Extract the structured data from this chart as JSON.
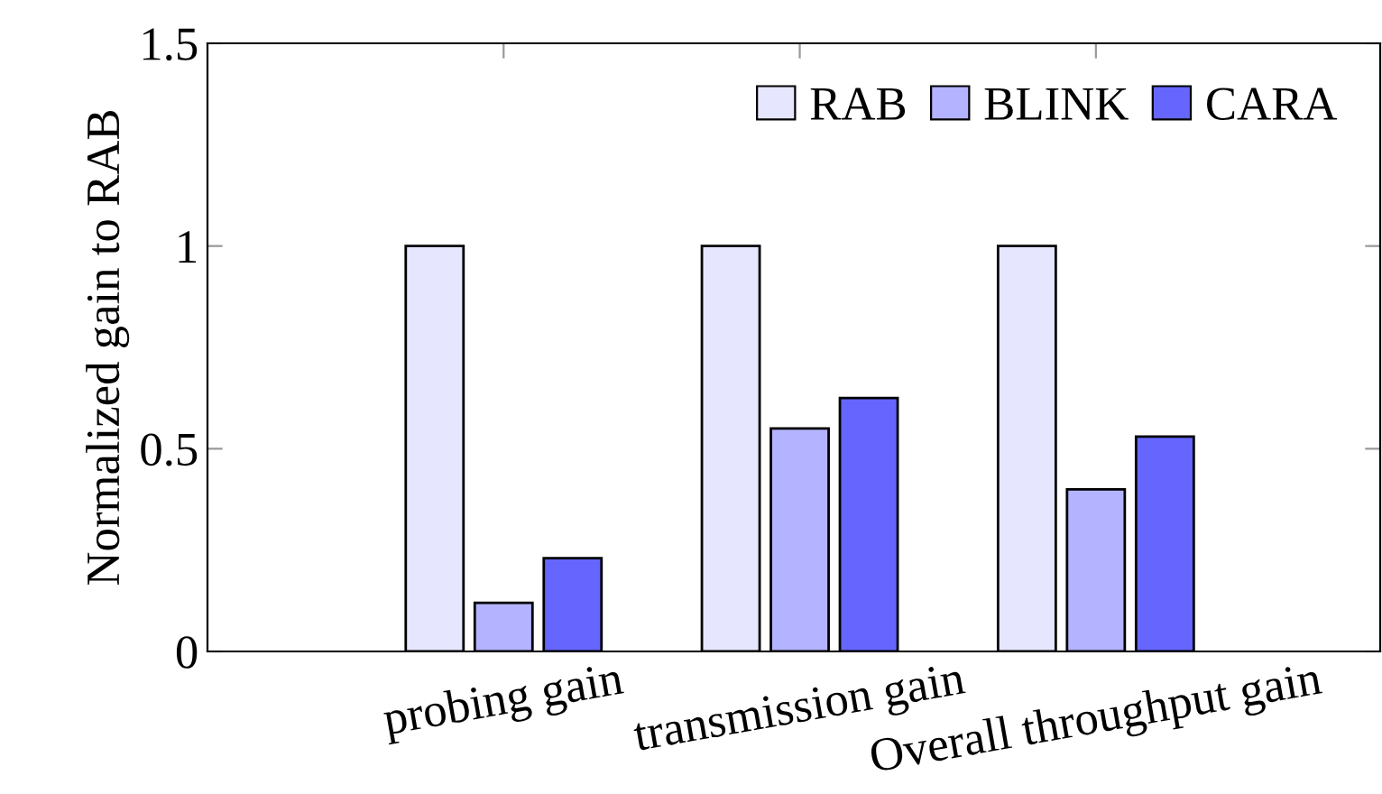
{
  "chart_data": {
    "type": "bar",
    "ylabel": "Normalized gain to RAB",
    "categories": [
      "probing gain",
      "transmission gain",
      "Overall throughput gain"
    ],
    "series": [
      {
        "name": "RAB",
        "color": "#e6e6ff",
        "values": [
          1,
          1,
          1
        ]
      },
      {
        "name": "BLINK",
        "color": "#b3b3ff",
        "values": [
          0.12,
          0.55,
          0.4
        ]
      },
      {
        "name": "CARA",
        "color": "#6666ff",
        "values": [
          0.23,
          0.625,
          0.53
        ]
      }
    ],
    "ylim": [
      0,
      1.5
    ],
    "yticks": [
      0,
      0.5,
      1,
      1.5
    ],
    "grid": false,
    "legend": "top right"
  }
}
